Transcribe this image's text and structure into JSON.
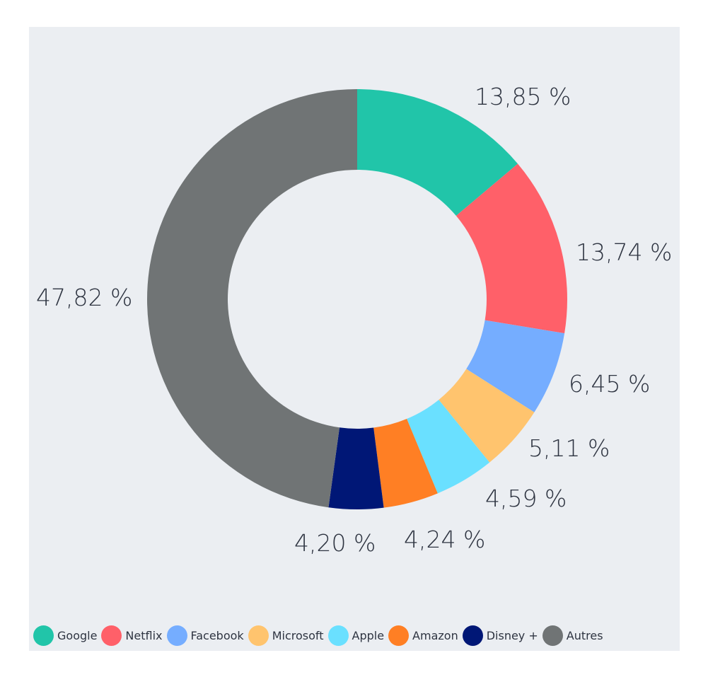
{
  "chart_data": {
    "type": "pie",
    "variant": "donut",
    "slices": [
      {
        "name": "Google",
        "value": 13.85,
        "label": "13,85 %",
        "color": "#21c5a9"
      },
      {
        "name": "Netflix",
        "value": 13.74,
        "label": "13,74 %",
        "color": "#ff6069"
      },
      {
        "name": "Facebook",
        "value": 6.45,
        "label": "6,45 %",
        "color": "#75adff"
      },
      {
        "name": "Microsoft",
        "value": 5.11,
        "label": "5,11 %",
        "color": "#ffc46e"
      },
      {
        "name": "Apple",
        "value": 4.59,
        "label": "4,59 %",
        "color": "#6ae0ff"
      },
      {
        "name": "Amazon",
        "value": 4.24,
        "label": "4,24 %",
        "color": "#ff7f24"
      },
      {
        "name": "Disney +",
        "value": 4.2,
        "label": "4,20 %",
        "color": "#001776"
      },
      {
        "name": "Autres",
        "value": 47.82,
        "label": "47,82 %",
        "color": "#707475"
      }
    ],
    "legend_position": "bottom",
    "start_angle": "12 o'clock",
    "direction": "clockwise"
  },
  "colors": {
    "panel_background": "#ebeef2",
    "page_background": "#ffffff",
    "text": "#2e3441"
  }
}
